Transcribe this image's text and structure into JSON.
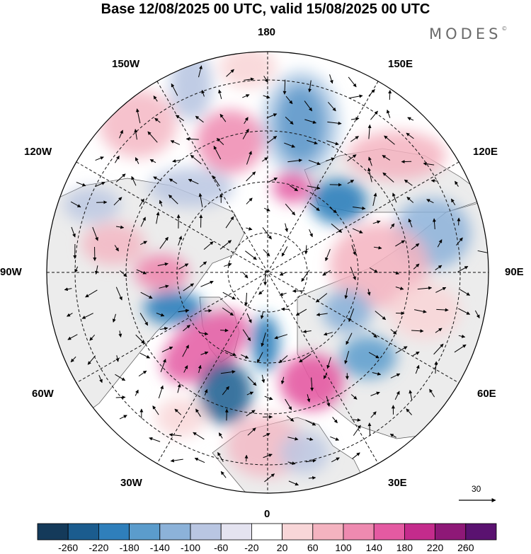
{
  "title": "Base 12/08/2025 00 UTC, valid 15/08/2025 00 UTC",
  "brand": "MODES",
  "brand_mark": "©",
  "longitude_labels": {
    "lon_180": "180",
    "lon_150e": "150E",
    "lon_120e": "120E",
    "lon_90e": "90E",
    "lon_60e": "60E",
    "lon_30e": "30E",
    "lon_0": "0",
    "lon_30w": "30W",
    "lon_60w": "60W",
    "lon_90w": "90W",
    "lon_120w": "120W",
    "lon_150w": "150W"
  },
  "reference_vector": "30",
  "colorbar": {
    "ticks": [
      "-260",
      "-220",
      "-180",
      "-140",
      "-100",
      "-60",
      "-20",
      "20",
      "60",
      "100",
      "140",
      "180",
      "220",
      "260"
    ],
    "colors": [
      "#143a5a",
      "#1b5c8e",
      "#2f7fbb",
      "#5b9ccc",
      "#8cb2d9",
      "#b9c6e2",
      "#e4e3f0",
      "#ffffff",
      "#f8d6d8",
      "#f4b3c0",
      "#ee8ab0",
      "#e45aa2",
      "#c42b8c",
      "#8e1877",
      "#5a1270"
    ]
  },
  "colors": {
    "land": "#ececec",
    "ocean": "#ffffff",
    "frame": "#000000"
  }
}
